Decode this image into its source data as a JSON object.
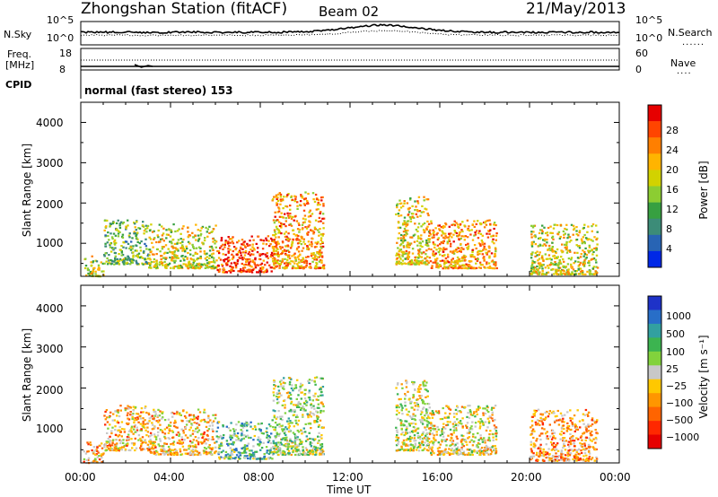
{
  "header": {
    "station": "Zhongshan Station (fitACF)",
    "beam": "Beam 02",
    "date": "21/May/2013"
  },
  "top_panels": {
    "nsky_label": "N.Sky",
    "nsky_ticks": [
      "10^5",
      "10^0"
    ],
    "nsearch_label": "N.Search",
    "nsearch_ticks": [
      "10^5",
      "10^0"
    ],
    "freq_label": "Freq.",
    "freq_unit": "[MHz]",
    "freq_ticks": [
      "18",
      "8"
    ],
    "nave_label": "Nave",
    "nave_ticks": [
      "60",
      "0"
    ],
    "cpid_label": "CPID",
    "cpid_value": "normal (fast stereo) 153"
  },
  "chart_data": [
    {
      "type": "heatmap",
      "name": "power",
      "ylabel": "Slant Range [km]",
      "y_ticks": [
        "4000",
        "3000",
        "2000",
        "1000"
      ],
      "ylim": [
        180,
        4500
      ],
      "xlim_hours": [
        0,
        24
      ],
      "colorbar_label": "Power [dB]",
      "colorbar_ticks": [
        "28",
        "24",
        "20",
        "16",
        "12",
        "8",
        "4"
      ],
      "colorbar_colors": [
        "#e60000",
        "#ff4400",
        "#ff7f00",
        "#ffb400",
        "#d2d200",
        "#8ccd32",
        "#37a041",
        "#3c8c78",
        "#2864b4",
        "#0028e6"
      ],
      "scatter_regions": [
        {
          "t": [
            0.1,
            1.0
          ],
          "r": [
            200,
            700
          ],
          "level": 0.5
        },
        {
          "t": [
            1.0,
            3.0
          ],
          "r": [
            500,
            1600
          ],
          "level": 0.4
        },
        {
          "t": [
            3.0,
            6.0
          ],
          "r": [
            400,
            1500
          ],
          "level": 0.55
        },
        {
          "t": [
            6.0,
            8.5
          ],
          "r": [
            300,
            1200
          ],
          "level": 0.85
        },
        {
          "t": [
            8.5,
            10.8
          ],
          "r": [
            400,
            2300
          ],
          "level": 0.7
        },
        {
          "t": [
            14.0,
            15.5
          ],
          "r": [
            500,
            2200
          ],
          "level": 0.6
        },
        {
          "t": [
            15.5,
            18.5
          ],
          "r": [
            400,
            1600
          ],
          "level": 0.7
        },
        {
          "t": [
            20.0,
            23.0
          ],
          "r": [
            250,
            1500
          ],
          "level": 0.55
        }
      ]
    },
    {
      "type": "heatmap",
      "name": "velocity",
      "ylabel": "Slant Range [km]",
      "y_ticks": [
        "4000",
        "3000",
        "2000",
        "1000"
      ],
      "ylim": [
        180,
        4500
      ],
      "xlim_hours": [
        0,
        24
      ],
      "colorbar_label": "Velocity [m s⁻¹]",
      "colorbar_ticks": [
        "1000",
        "500",
        "100",
        "25",
        "−25",
        "−100",
        "−500",
        "−1000"
      ],
      "colorbar_colors": [
        "#1e32c8",
        "#286ec8",
        "#32a0a0",
        "#3cb450",
        "#82d23c",
        "#c8c8c8",
        "#ffc800",
        "#ff9600",
        "#ff6400",
        "#ff2800",
        "#e60000"
      ],
      "scatter_regions": [
        {
          "t": [
            0.1,
            1.0
          ],
          "r": [
            200,
            700
          ],
          "level": 0.65
        },
        {
          "t": [
            1.0,
            3.0
          ],
          "r": [
            500,
            1600
          ],
          "level": 0.62
        },
        {
          "t": [
            3.0,
            6.0
          ],
          "r": [
            400,
            1500
          ],
          "level": 0.62
        },
        {
          "t": [
            6.0,
            8.5
          ],
          "r": [
            300,
            1200
          ],
          "level": 0.35
        },
        {
          "t": [
            8.5,
            10.8
          ],
          "r": [
            400,
            2300
          ],
          "level": 0.45
        },
        {
          "t": [
            14.0,
            15.5
          ],
          "r": [
            500,
            2200
          ],
          "level": 0.5
        },
        {
          "t": [
            15.5,
            18.5
          ],
          "r": [
            400,
            1600
          ],
          "level": 0.55
        },
        {
          "t": [
            20.0,
            23.0
          ],
          "r": [
            250,
            1500
          ],
          "level": 0.68
        }
      ]
    }
  ],
  "x_axis": {
    "ticks": [
      "00:00",
      "04:00",
      "08:00",
      "12:00",
      "16:00",
      "20:00",
      "00:00"
    ],
    "label": "Time UT"
  }
}
